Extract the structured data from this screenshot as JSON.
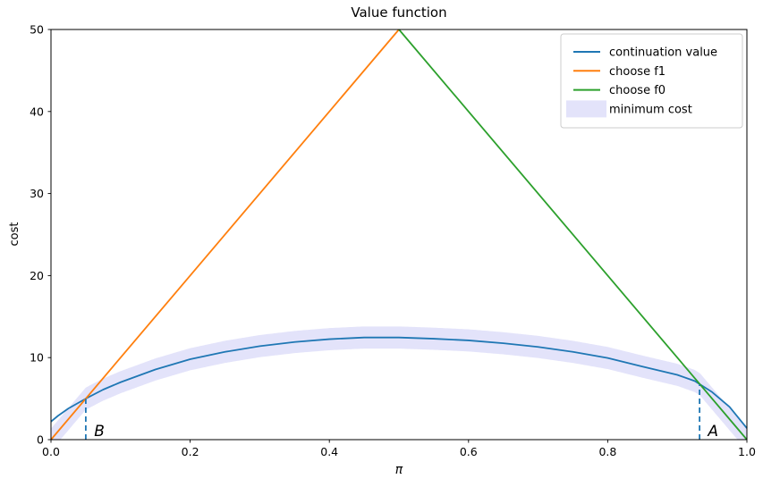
{
  "figure": {
    "title": "Value function",
    "xlabel": "π",
    "ylabel": "cost"
  },
  "chart_data": {
    "type": "line",
    "title": "Value function",
    "xlabel": "π",
    "ylabel": "cost",
    "xlim": [
      0,
      1
    ],
    "ylim": [
      0,
      50
    ],
    "grid": false,
    "x_ticks": {
      "values": [
        0,
        0.2,
        0.4,
        0.6,
        0.8,
        1.0
      ],
      "labels": [
        "0.0",
        "0.2",
        "0.4",
        "0.6",
        "0.8",
        "1.0"
      ]
    },
    "y_ticks": {
      "values": [
        0,
        10,
        20,
        30,
        40,
        50
      ],
      "labels": [
        "0",
        "10",
        "20",
        "30",
        "40",
        "50"
      ]
    },
    "colors": {
      "continuation": "#1f77b4",
      "f1": "#ff7f0e",
      "f0": "#2ca02c",
      "band": "#e3e3fa",
      "dashed": "#1f77b4",
      "axis": "#000000",
      "legend_border": "#cccccc"
    },
    "series": [
      {
        "name": "continuation value",
        "color": "#1f77b4",
        "width": 1.8,
        "points": [
          [
            0.0,
            2.2
          ],
          [
            0.01,
            2.9
          ],
          [
            0.025,
            3.8
          ],
          [
            0.05,
            5.0
          ],
          [
            0.075,
            6.1
          ],
          [
            0.1,
            7.0
          ],
          [
            0.15,
            8.55
          ],
          [
            0.2,
            9.8
          ],
          [
            0.25,
            10.7
          ],
          [
            0.3,
            11.4
          ],
          [
            0.35,
            11.9
          ],
          [
            0.4,
            12.25
          ],
          [
            0.45,
            12.45
          ],
          [
            0.5,
            12.45
          ],
          [
            0.55,
            12.3
          ],
          [
            0.6,
            12.1
          ],
          [
            0.65,
            11.75
          ],
          [
            0.7,
            11.3
          ],
          [
            0.75,
            10.7
          ],
          [
            0.8,
            9.95
          ],
          [
            0.85,
            8.9
          ],
          [
            0.9,
            7.9
          ],
          [
            0.925,
            7.15
          ],
          [
            0.95,
            5.8
          ],
          [
            0.975,
            4.0
          ],
          [
            1.0,
            1.4
          ]
        ]
      },
      {
        "name": "choose f1",
        "color": "#ff7f0e",
        "width": 1.8,
        "points": [
          [
            0,
            0
          ],
          [
            0.5,
            50
          ]
        ]
      },
      {
        "name": "choose f0",
        "color": "#2ca02c",
        "width": 1.8,
        "points": [
          [
            0.5,
            50
          ],
          [
            1,
            0
          ]
        ]
      }
    ],
    "band": {
      "name": "minimum cost",
      "color": "#e3e3fa",
      "half_width": 1.35,
      "clip_min": 0
    },
    "annotations": [
      {
        "label": "B",
        "line_x": 0.05,
        "line_top": 5.0,
        "label_x": 0.062,
        "label_y": 0.45
      },
      {
        "label": "A",
        "line_x": 0.932,
        "line_top": 6.7,
        "label_x": 0.944,
        "label_y": 0.45
      }
    ],
    "legend": {
      "position": "upper right",
      "entries": [
        {
          "label": "continuation value",
          "color": "#1f77b4",
          "type": "line"
        },
        {
          "label": "choose f1",
          "color": "#ff7f0e",
          "type": "line"
        },
        {
          "label": "choose f0",
          "color": "#2ca02c",
          "type": "line"
        },
        {
          "label": "minimum cost",
          "color": "#e3e3fa",
          "type": "patch"
        }
      ]
    }
  }
}
